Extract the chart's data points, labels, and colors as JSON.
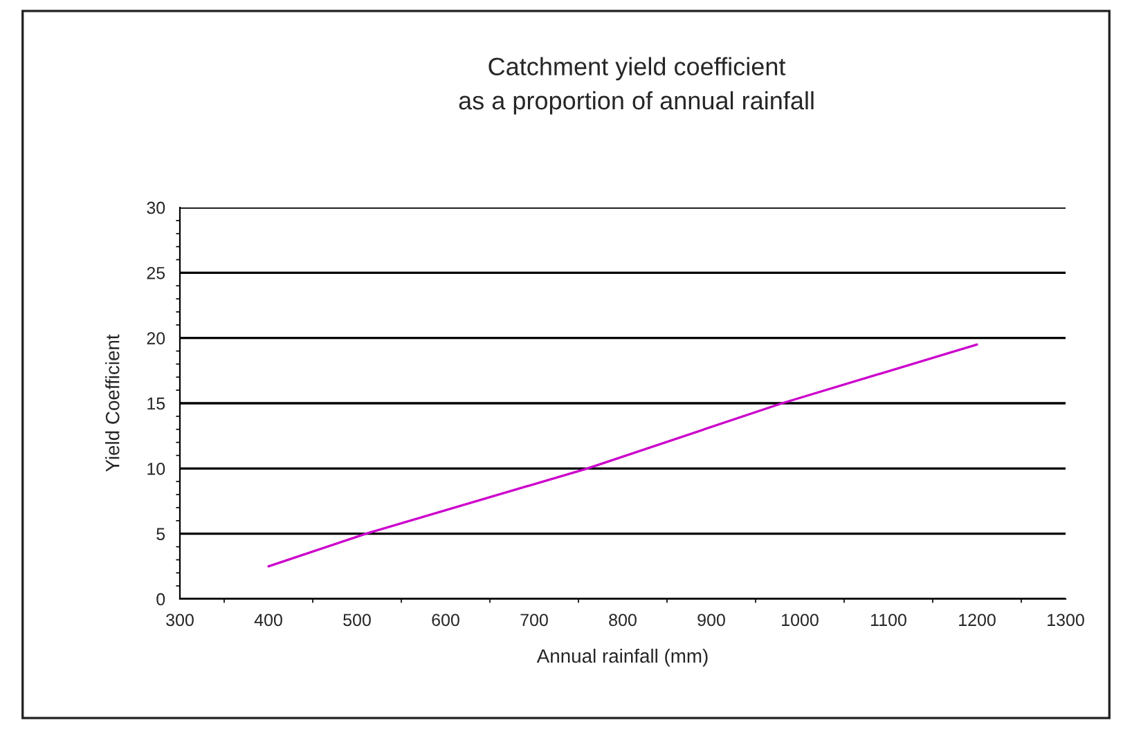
{
  "chart_data": {
    "type": "line",
    "title": "Catchment yield coefficient\nas a proportion of annual rainfall",
    "xlabel": "Annual rainfall (mm)",
    "ylabel": "Yield Coefficient",
    "x": [
      400,
      510,
      760,
      980,
      1200
    ],
    "series": [
      {
        "color": "#cc00cc",
        "values": [
          2.5,
          5,
          10,
          15,
          19.5
        ]
      }
    ],
    "xlim": [
      300,
      1300
    ],
    "xticks": [
      300,
      400,
      500,
      600,
      700,
      800,
      900,
      1000,
      1100,
      1200,
      1300
    ],
    "ylim": [
      0,
      30
    ],
    "yticks": [
      0,
      5,
      10,
      15,
      20,
      25,
      30
    ],
    "grid": "y",
    "marker": "none",
    "line_style": "solid",
    "legend": false
  }
}
